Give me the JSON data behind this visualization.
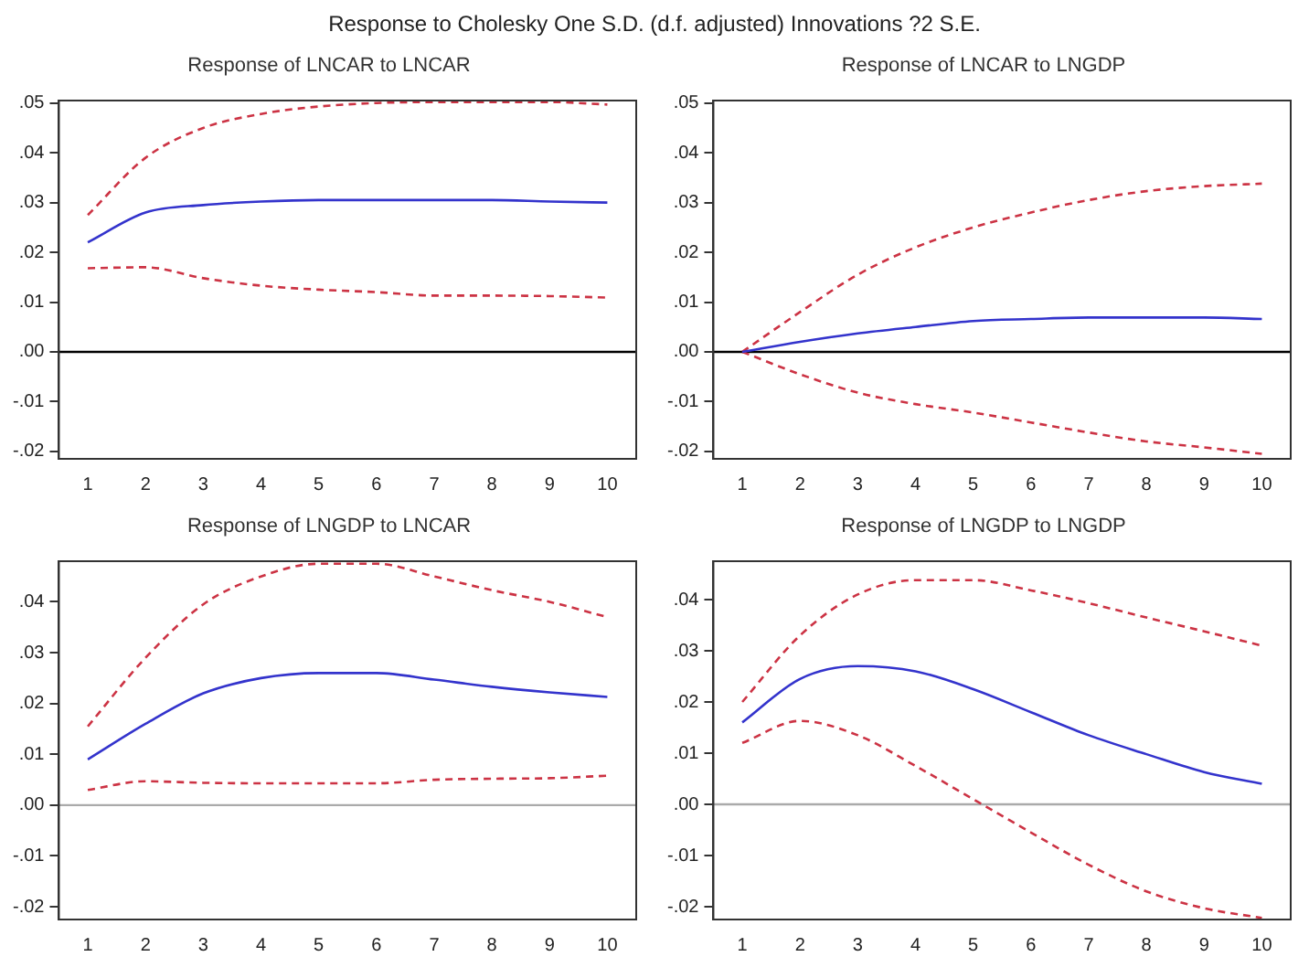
{
  "chart_data": [
    {
      "type": "line",
      "title": "Response of LNCAR to LNCAR",
      "annotations": [
        "Response to Cholesky One S.D. (d.f. adjusted) Innovations ?2 S.E."
      ],
      "categories": [
        "1",
        "2",
        "3",
        "4",
        "5",
        "6",
        "7",
        "8",
        "9",
        "10"
      ],
      "ylim": [
        -0.0215,
        0.0505
      ],
      "yticks": [
        {
          "value": -0.02,
          "label": "-.02"
        },
        {
          "value": -0.01,
          "label": "-.01"
        },
        {
          "value": 0,
          "label": ".00"
        },
        {
          "value": 0.01,
          "label": ".01"
        },
        {
          "value": 0.02,
          "label": ".02"
        },
        {
          "value": 0.03,
          "label": ".03"
        },
        {
          "value": 0.04,
          "label": ".04"
        },
        {
          "value": 0.05,
          "label": ".05"
        }
      ],
      "grid": false,
      "legend": false,
      "marker": "none",
      "ref_lines": [
        {
          "axis": "y",
          "value": 0,
          "color": "#000000"
        }
      ],
      "series": [
        {
          "color": "#3333cc",
          "line_style": "solid",
          "values": [
            0.022,
            0.028,
            0.0295,
            0.0302,
            0.0305,
            0.0305,
            0.0305,
            0.0305,
            0.0302,
            0.03
          ]
        },
        {
          "color": "#cc3344",
          "line_style": "dashed",
          "values": [
            0.0275,
            0.039,
            0.045,
            0.0478,
            0.0493,
            0.05,
            0.0502,
            0.0502,
            0.0502,
            0.0497
          ]
        },
        {
          "color": "#cc3344",
          "line_style": "dashed",
          "values": [
            0.0168,
            0.017,
            0.0148,
            0.0133,
            0.0125,
            0.012,
            0.0113,
            0.0113,
            0.0112,
            0.0109
          ]
        }
      ]
    },
    {
      "type": "line",
      "title": "Response of LNCAR to LNGDP",
      "categories": [
        "1",
        "2",
        "3",
        "4",
        "5",
        "6",
        "7",
        "8",
        "9",
        "10"
      ],
      "ylim": [
        -0.0215,
        0.0505
      ],
      "yticks": [
        {
          "value": -0.02,
          "label": "-.02"
        },
        {
          "value": -0.01,
          "label": "-.01"
        },
        {
          "value": 0,
          "label": ".00"
        },
        {
          "value": 0.01,
          "label": ".01"
        },
        {
          "value": 0.02,
          "label": ".02"
        },
        {
          "value": 0.03,
          "label": ".03"
        },
        {
          "value": 0.04,
          "label": ".04"
        },
        {
          "value": 0.05,
          "label": ".05"
        }
      ],
      "grid": false,
      "legend": false,
      "marker": "none",
      "ref_lines": [
        {
          "axis": "y",
          "value": 0,
          "color": "#000000"
        }
      ],
      "series": [
        {
          "color": "#3333cc",
          "line_style": "solid",
          "values": [
            0,
            0.002,
            0.0037,
            0.005,
            0.0062,
            0.0066,
            0.0069,
            0.0069,
            0.0069,
            0.0066
          ]
        },
        {
          "color": "#cc3344",
          "line_style": "dashed",
          "values": [
            0,
            0.008,
            0.0155,
            0.021,
            0.025,
            0.028,
            0.0305,
            0.0323,
            0.0333,
            0.0338
          ]
        },
        {
          "color": "#cc3344",
          "line_style": "dashed",
          "values": [
            0,
            -0.0045,
            -0.0082,
            -0.0105,
            -0.0122,
            -0.0142,
            -0.0162,
            -0.018,
            -0.0192,
            -0.0205
          ]
        }
      ]
    },
    {
      "type": "line",
      "title": "Response of LNGDP to LNCAR",
      "categories": [
        "1",
        "2",
        "3",
        "4",
        "5",
        "6",
        "7",
        "8",
        "9",
        "10"
      ],
      "ylim": [
        -0.0225,
        0.048
      ],
      "yticks": [
        {
          "value": -0.02,
          "label": "-.02"
        },
        {
          "value": -0.01,
          "label": "-.01"
        },
        {
          "value": 0,
          "label": ".00"
        },
        {
          "value": 0.01,
          "label": ".01"
        },
        {
          "value": 0.02,
          "label": ".02"
        },
        {
          "value": 0.03,
          "label": ".03"
        },
        {
          "value": 0.04,
          "label": ".04"
        }
      ],
      "grid": false,
      "legend": false,
      "marker": "none",
      "ref_lines": [
        {
          "axis": "y",
          "value": 0,
          "color": "#aaaaaa"
        }
      ],
      "series": [
        {
          "color": "#3333cc",
          "line_style": "solid",
          "values": [
            0.009,
            0.016,
            0.022,
            0.025,
            0.026,
            0.026,
            0.0247,
            0.0233,
            0.0222,
            0.0213
          ]
        },
        {
          "color": "#cc3344",
          "line_style": "dashed",
          "values": [
            0.0155,
            0.029,
            0.0395,
            0.045,
            0.0475,
            0.0475,
            0.045,
            0.0423,
            0.04,
            0.037
          ]
        },
        {
          "color": "#cc3344",
          "line_style": "dashed",
          "values": [
            0.003,
            0.0047,
            0.0044,
            0.0043,
            0.0043,
            0.0043,
            0.005,
            0.0052,
            0.0053,
            0.0058
          ]
        }
      ]
    },
    {
      "type": "line",
      "title": "Response of LNGDP to LNGDP",
      "categories": [
        "1",
        "2",
        "3",
        "4",
        "5",
        "6",
        "7",
        "8",
        "9",
        "10"
      ],
      "ylim": [
        -0.0225,
        0.0475
      ],
      "yticks": [
        {
          "value": -0.02,
          "label": "-.02"
        },
        {
          "value": -0.01,
          "label": "-.01"
        },
        {
          "value": 0,
          "label": ".00"
        },
        {
          "value": 0.01,
          "label": ".01"
        },
        {
          "value": 0.02,
          "label": ".02"
        },
        {
          "value": 0.03,
          "label": ".03"
        },
        {
          "value": 0.04,
          "label": ".04"
        }
      ],
      "grid": false,
      "legend": false,
      "marker": "none",
      "ref_lines": [
        {
          "axis": "y",
          "value": 0,
          "color": "#aaaaaa"
        }
      ],
      "series": [
        {
          "color": "#3333cc",
          "line_style": "solid",
          "values": [
            0.016,
            0.0245,
            0.027,
            0.026,
            0.0225,
            0.018,
            0.0135,
            0.0098,
            0.0063,
            0.004
          ]
        },
        {
          "color": "#cc3344",
          "line_style": "dashed",
          "values": [
            0.02,
            0.033,
            0.041,
            0.0438,
            0.0438,
            0.0418,
            0.0393,
            0.0365,
            0.0338,
            0.031
          ]
        },
        {
          "color": "#cc3344",
          "line_style": "dashed",
          "values": [
            0.012,
            0.0163,
            0.0135,
            0.0075,
            0.001,
            -0.0055,
            -0.0118,
            -0.017,
            -0.0203,
            -0.0222
          ]
        }
      ]
    }
  ]
}
